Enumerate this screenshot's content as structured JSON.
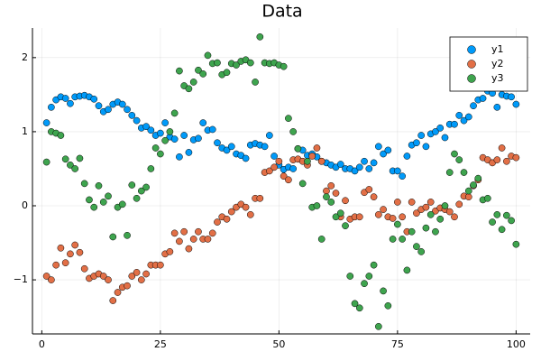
{
  "chart_data": {
    "type": "scatter",
    "title": "Data",
    "x": [
      1,
      2,
      3,
      4,
      5,
      6,
      7,
      8,
      9,
      10,
      11,
      12,
      13,
      14,
      15,
      16,
      17,
      18,
      19,
      20,
      21,
      22,
      23,
      24,
      25,
      26,
      27,
      28,
      29,
      30,
      31,
      32,
      33,
      34,
      35,
      36,
      37,
      38,
      39,
      40,
      41,
      42,
      43,
      44,
      45,
      46,
      47,
      48,
      49,
      50,
      51,
      52,
      53,
      54,
      55,
      56,
      57,
      58,
      59,
      60,
      61,
      62,
      63,
      64,
      65,
      66,
      67,
      68,
      69,
      70,
      71,
      72,
      73,
      74,
      75,
      76,
      77,
      78,
      79,
      80,
      81,
      82,
      83,
      84,
      85,
      86,
      87,
      88,
      89,
      90,
      91,
      92,
      93,
      94,
      95,
      96,
      97,
      98,
      99,
      100
    ],
    "series": [
      {
        "name": "y1",
        "color": "#009af9",
        "values": [
          1.12,
          1.33,
          1.43,
          1.47,
          1.45,
          1.38,
          1.47,
          1.48,
          1.49,
          1.47,
          1.44,
          1.35,
          1.27,
          1.3,
          1.37,
          1.4,
          1.37,
          1.3,
          1.22,
          1.15,
          1.05,
          1.07,
          1.02,
          0.95,
          0.98,
          1.12,
          0.93,
          0.9,
          0.66,
          0.95,
          0.72,
          0.89,
          0.91,
          1.12,
          1.02,
          1.03,
          0.85,
          0.78,
          0.75,
          0.8,
          0.7,
          0.68,
          0.64,
          0.82,
          0.84,
          0.82,
          0.8,
          0.95,
          0.67,
          0.55,
          0.49,
          0.52,
          0.5,
          0.77,
          0.75,
          0.68,
          0.7,
          0.66,
          0.6,
          0.58,
          0.55,
          0.52,
          0.56,
          0.5,
          0.5,
          0.47,
          0.52,
          0.6,
          0.5,
          0.58,
          0.8,
          0.7,
          0.75,
          0.47,
          0.47,
          0.4,
          0.67,
          0.82,
          0.85,
          0.95,
          0.8,
          0.97,
          1.0,
          1.05,
          0.92,
          1.1,
          1.1,
          1.22,
          1.15,
          1.2,
          1.35,
          1.43,
          1.45,
          1.55,
          1.52,
          1.33,
          1.5,
          1.48,
          1.47,
          1.37
        ]
      },
      {
        "name": "y2",
        "color": "#e26f46",
        "values": [
          -0.95,
          -1.0,
          -0.8,
          -0.57,
          -0.77,
          -0.65,
          -0.53,
          -0.63,
          -0.85,
          -0.98,
          -0.95,
          -0.92,
          -0.95,
          -1.0,
          -1.28,
          -1.17,
          -1.1,
          -1.08,
          -0.95,
          -0.9,
          -1.0,
          -0.92,
          -0.8,
          -0.8,
          -0.8,
          -0.65,
          -0.62,
          -0.37,
          -0.48,
          -0.35,
          -0.58,
          -0.45,
          -0.35,
          -0.45,
          -0.45,
          -0.37,
          -0.22,
          -0.15,
          -0.18,
          -0.08,
          -0.02,
          0.02,
          -0.02,
          -0.12,
          0.1,
          0.1,
          0.45,
          0.47,
          0.52,
          0.6,
          0.4,
          0.35,
          0.62,
          0.63,
          0.6,
          0.55,
          0.67,
          0.78,
          0.6,
          0.2,
          0.27,
          0.17,
          -0.15,
          0.07,
          -0.18,
          -0.15,
          -0.15,
          0.18,
          0.22,
          0.12,
          -0.12,
          -0.05,
          -0.15,
          -0.17,
          0.05,
          -0.15,
          -0.35,
          0.05,
          -0.1,
          -0.05,
          -0.02,
          0.05,
          -0.07,
          -0.03,
          -0.05,
          -0.08,
          -0.15,
          0.02,
          0.13,
          0.12,
          0.27,
          0.35,
          0.65,
          0.62,
          0.58,
          0.62,
          0.78,
          0.6,
          0.67,
          0.65
        ]
      },
      {
        "name": "y3",
        "color": "#3ea44e",
        "values": [
          0.59,
          1.0,
          0.98,
          0.95,
          0.63,
          0.55,
          0.5,
          0.64,
          0.3,
          0.08,
          -0.02,
          0.27,
          0.05,
          0.13,
          -0.42,
          -0.02,
          0.02,
          -0.4,
          0.28,
          0.1,
          0.2,
          0.25,
          0.5,
          0.78,
          0.7,
          0.88,
          1.0,
          1.25,
          1.82,
          1.62,
          1.58,
          1.67,
          1.83,
          1.78,
          2.03,
          1.92,
          1.93,
          1.77,
          1.8,
          1.92,
          1.9,
          1.95,
          1.97,
          1.93,
          1.67,
          2.28,
          1.93,
          1.92,
          1.93,
          1.9,
          1.88,
          1.18,
          1.0,
          0.77,
          0.3,
          0.6,
          -0.02,
          0.0,
          -0.45,
          0.12,
          0.05,
          -0.15,
          -0.1,
          -0.27,
          -0.95,
          -1.32,
          -1.38,
          -1.05,
          -0.95,
          -0.8,
          -1.63,
          -1.15,
          -1.35,
          -0.45,
          -0.25,
          -0.45,
          -0.87,
          -0.35,
          -0.55,
          -0.62,
          -0.3,
          -0.12,
          -0.35,
          -0.18,
          0.0,
          0.45,
          0.7,
          0.62,
          0.45,
          0.2,
          0.28,
          0.37,
          0.08,
          0.1,
          -0.22,
          -0.12,
          -0.32,
          -0.13,
          -0.2,
          -0.52
        ]
      }
    ],
    "xlim": [
      -1.97,
      102.97
    ],
    "xticks": [
      0,
      25,
      50,
      75,
      100
    ],
    "ylim": [
      -1.73,
      2.4
    ],
    "yticks": [
      {
        "value": -1,
        "label": "−1"
      },
      0,
      1,
      2
    ],
    "grid": true,
    "legend": "top-right"
  }
}
